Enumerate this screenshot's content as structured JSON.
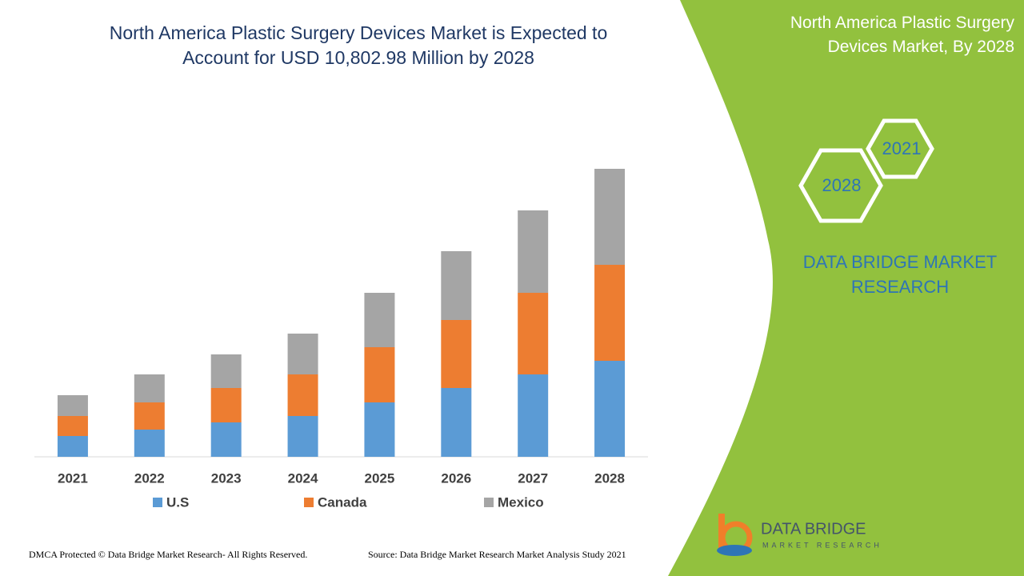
{
  "chart_data": {
    "type": "bar",
    "stacked": true,
    "title": "North America Plastic Surgery Devices Market is Expected to Account for USD 10,802.98 Million by 2028",
    "categories": [
      "2021",
      "2022",
      "2023",
      "2024",
      "2025",
      "2026",
      "2027",
      "2028"
    ],
    "series": [
      {
        "name": "U.S",
        "color": "#5b9bd5",
        "values": [
          26,
          34,
          43,
          51,
          68,
          86,
          103,
          120
        ]
      },
      {
        "name": "Canada",
        "color": "#ed7d31",
        "values": [
          25,
          34,
          43,
          52,
          69,
          85,
          102,
          120
        ]
      },
      {
        "name": "Mexico",
        "color": "#a5a5a5",
        "values": [
          26,
          35,
          42,
          51,
          68,
          86,
          103,
          120
        ]
      }
    ],
    "ylim": [
      0,
      400
    ]
  },
  "panel": {
    "heading": "North America Plastic Surgery Devices Market, By 2028",
    "hex_labels": [
      "2021",
      "2028"
    ],
    "brand": "DATA BRIDGE MARKET RESEARCH"
  },
  "logo": {
    "name": "DATA BRIDGE",
    "tagline": "MARKET RESEARCH"
  },
  "footer": {
    "copyright": "DMCA Protected © Data Bridge Market Research- All Rights Reserved.",
    "source": "Source: Data Bridge Market Research Market Analysis Study 2021"
  }
}
